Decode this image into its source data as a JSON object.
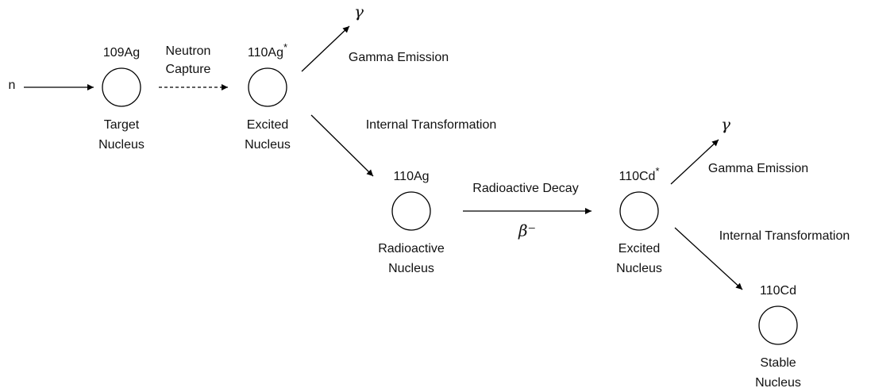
{
  "incoming": "n",
  "nodes": [
    {
      "isotope": "109Ag",
      "sup": null,
      "lines": [
        "Target",
        "Nucleus"
      ]
    },
    {
      "isotope": "110Ag",
      "sup": "*",
      "lines": [
        "Excited",
        "Nucleus"
      ]
    },
    {
      "isotope": "110Ag",
      "sup": null,
      "lines": [
        "Radioactive",
        "Nucleus"
      ]
    },
    {
      "isotope": "110Cd",
      "sup": "*",
      "lines": [
        "Excited",
        "Nucleus"
      ]
    },
    {
      "isotope": "110Cd",
      "sup": null,
      "lines": [
        "Stable",
        "Nucleus"
      ]
    }
  ],
  "edges": [
    {
      "lines": [
        "Neutron",
        "Capture"
      ]
    },
    {
      "symbol": "γ",
      "label": "Gamma Emission"
    },
    {
      "label": "Internal Transformation"
    },
    {
      "label": "Radioactive Decay",
      "symbol": "β⁻"
    },
    {
      "symbol": "γ",
      "label": "Gamma Emission"
    },
    {
      "label": "Internal Transformation"
    }
  ]
}
